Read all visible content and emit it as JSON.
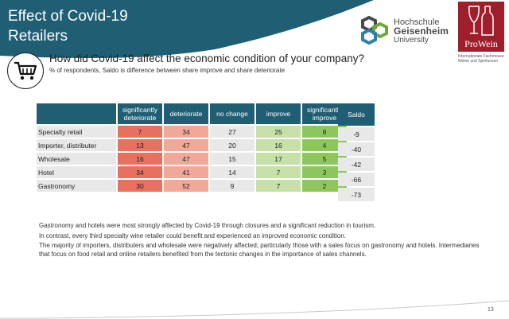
{
  "header": {
    "title_line1": "Effect of Covid-19",
    "title_line2": "Retailers",
    "banner_color": "#1f5e73"
  },
  "logos": {
    "hochschule": {
      "line1": "Hochschule",
      "line2": "Geisenheim",
      "line3": "University"
    },
    "prowein": {
      "name": "ProWein",
      "subtitle": "Internationale Fachmesse Weine und Spirituosen",
      "color": "#a01e2b"
    }
  },
  "question": {
    "title": "How did Covid-19 affect the economic condition of your company?",
    "subtitle": "% of respondents, Saldo is difference between share improve and share deteriorate",
    "icon": "shopping-cart-icon"
  },
  "table": {
    "columns": [
      "significantly deteriorate",
      "deteriorate",
      "no change",
      "improve",
      "significantly improve"
    ],
    "saldo_header": "Saldo",
    "rows": [
      {
        "label": "Specialty retail",
        "values": [
          "7",
          "34",
          "27",
          "25",
          "8"
        ],
        "saldo": "-9"
      },
      {
        "label": "Importer, distributer",
        "values": [
          "13",
          "47",
          "20",
          "16",
          "4"
        ],
        "saldo": "-40"
      },
      {
        "label": "Wholesale",
        "values": [
          "16",
          "47",
          "15",
          "17",
          "5"
        ],
        "saldo": "-42"
      },
      {
        "label": "Hotel",
        "values": [
          "34",
          "41",
          "14",
          "7",
          "3"
        ],
        "saldo": "-66"
      },
      {
        "label": "Gastronomy",
        "values": [
          "30",
          "52",
          "9",
          "7",
          "2"
        ],
        "saldo": "-73"
      }
    ],
    "column_colors": [
      "#e8705e",
      "#f2a898",
      "#e8e8e8",
      "#c6e0a8",
      "#8ec65e"
    ]
  },
  "text": {
    "p1": "Gastronomy and hotels were most strongly affected by Covid-19 through closures and a significant reduction in tourism.",
    "p2": "In contrast, every third specialty wine retailer could benefit and experienced an improved economic condition.",
    "p3": "The majority of importers, distributers and wholesale were negatively affected; particularly those with a sales focus on gastronomy and hotels. Intermediaries that focus on food retail and online retailers benefited from the tectonic changes in the importance of sales channels."
  },
  "page_number": "13"
}
